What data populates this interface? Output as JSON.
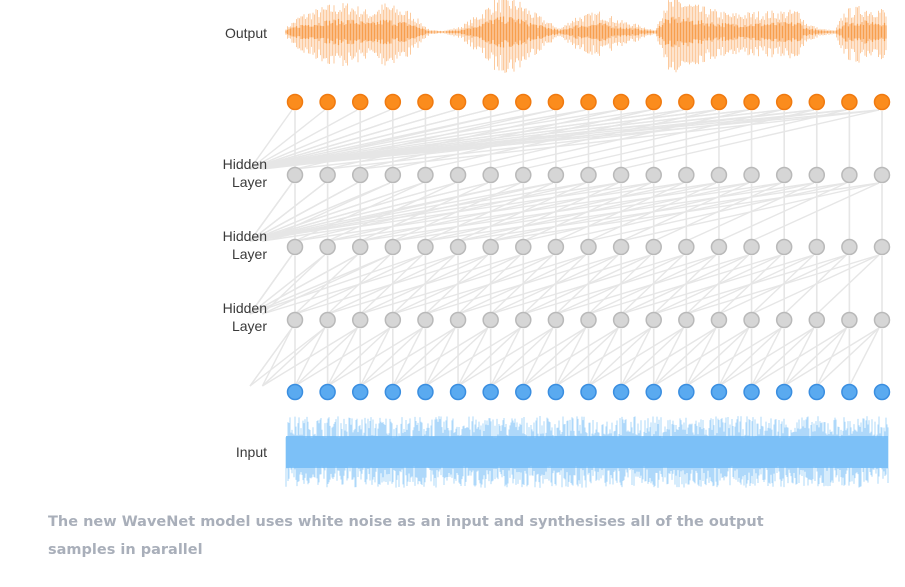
{
  "labels": {
    "output": "Output",
    "hidden_1": "Hidden\nLayer",
    "hidden_2": "Hidden\nLayer",
    "hidden_3": "Hidden\nLayer",
    "input": "Input"
  },
  "caption": "The new WaveNet model uses white noise as an input and synthesises all of the output samples in parallel",
  "nodes_per_layer": 19,
  "colors": {
    "output_node": "#fb8c1d",
    "output_node_stroke": "#f07a10",
    "hidden_node": "#d6d6d6",
    "hidden_node_stroke": "#b9b9b9",
    "input_node": "#5aaaf0",
    "input_node_stroke": "#3a8ee0",
    "output_wave": "#f8943a",
    "input_wave": "#6bb8f5",
    "connection": "#e6e6e6",
    "caption": "#a9afba"
  }
}
